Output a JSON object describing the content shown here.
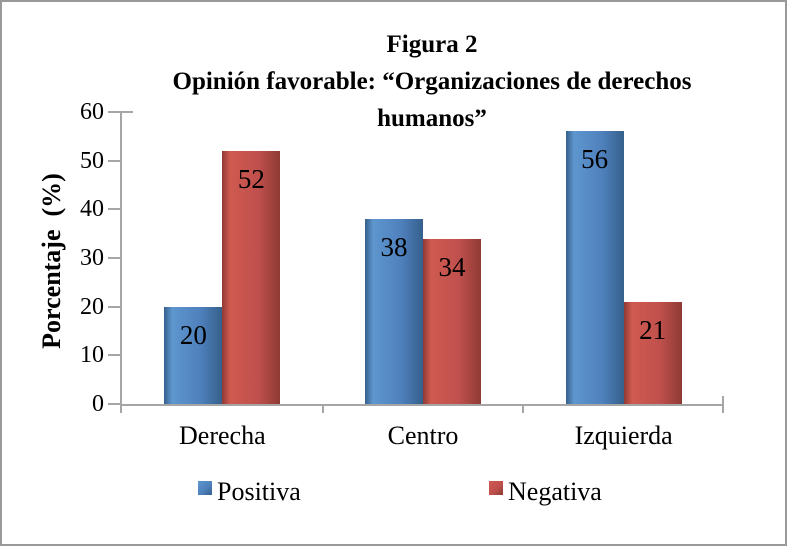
{
  "figure": {
    "border_color": "#999999",
    "background": "#FFFFFF"
  },
  "chart_data": {
    "type": "bar",
    "title_lines": [
      "Figura 2",
      "Opinión favorable: “Organizaciones de derechos",
      "humanos”"
    ],
    "categories": [
      "Derecha",
      "Centro",
      "Izquierda"
    ],
    "series": [
      {
        "name": "Positiva",
        "color": "#4F81BD",
        "color_light": "#5E96CE",
        "edge_color": "#35608C",
        "values": [
          20,
          38,
          56
        ]
      },
      {
        "name": "Negativa",
        "color": "#C0504D",
        "color_light": "#CF5A50",
        "edge_color": "#8F3A34",
        "values": [
          52,
          34,
          21
        ]
      }
    ],
    "ylabel": "Porcentaje  (%)",
    "ylim": [
      0,
      60
    ],
    "yticks": [
      0,
      10,
      20,
      30,
      40,
      50,
      60
    ],
    "grid": false,
    "legend_position": "bottom",
    "axis_color": "#A6A6A6",
    "text_color": "#000000",
    "bar_value_labels_shown": true
  }
}
